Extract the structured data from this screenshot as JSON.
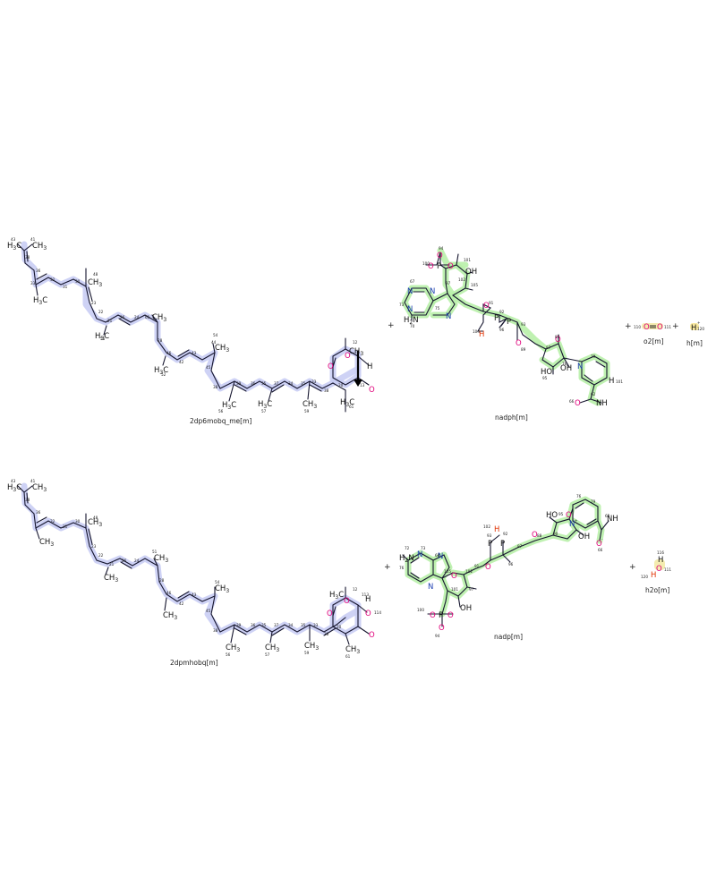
{
  "reactants": [
    {
      "id": "2dp6mobq_me",
      "label": "2dp6mobq_me[m]"
    },
    {
      "id": "nadph",
      "label": "nadph[m]"
    },
    {
      "id": "o2",
      "label": "o2[m]"
    },
    {
      "id": "h",
      "label": "h[m]"
    }
  ],
  "products": [
    {
      "id": "2dpmhobq",
      "label": "2dpmhobq[m]"
    },
    {
      "id": "nadp",
      "label": "nadp[m]"
    },
    {
      "id": "h2o",
      "label": "h2o[m]"
    }
  ],
  "operators": [
    "+",
    "+",
    "+",
    "+",
    "+"
  ],
  "atoms": {
    "ch3": "CH",
    "h3c": "H C",
    "three": "3",
    "o": "O",
    "oh": "OH",
    "h": "H",
    "n": "N",
    "nh": "NH",
    "h2n": "H N",
    "two": "2",
    "p": "P",
    "minus": "-",
    "plus": "+"
  }
}
